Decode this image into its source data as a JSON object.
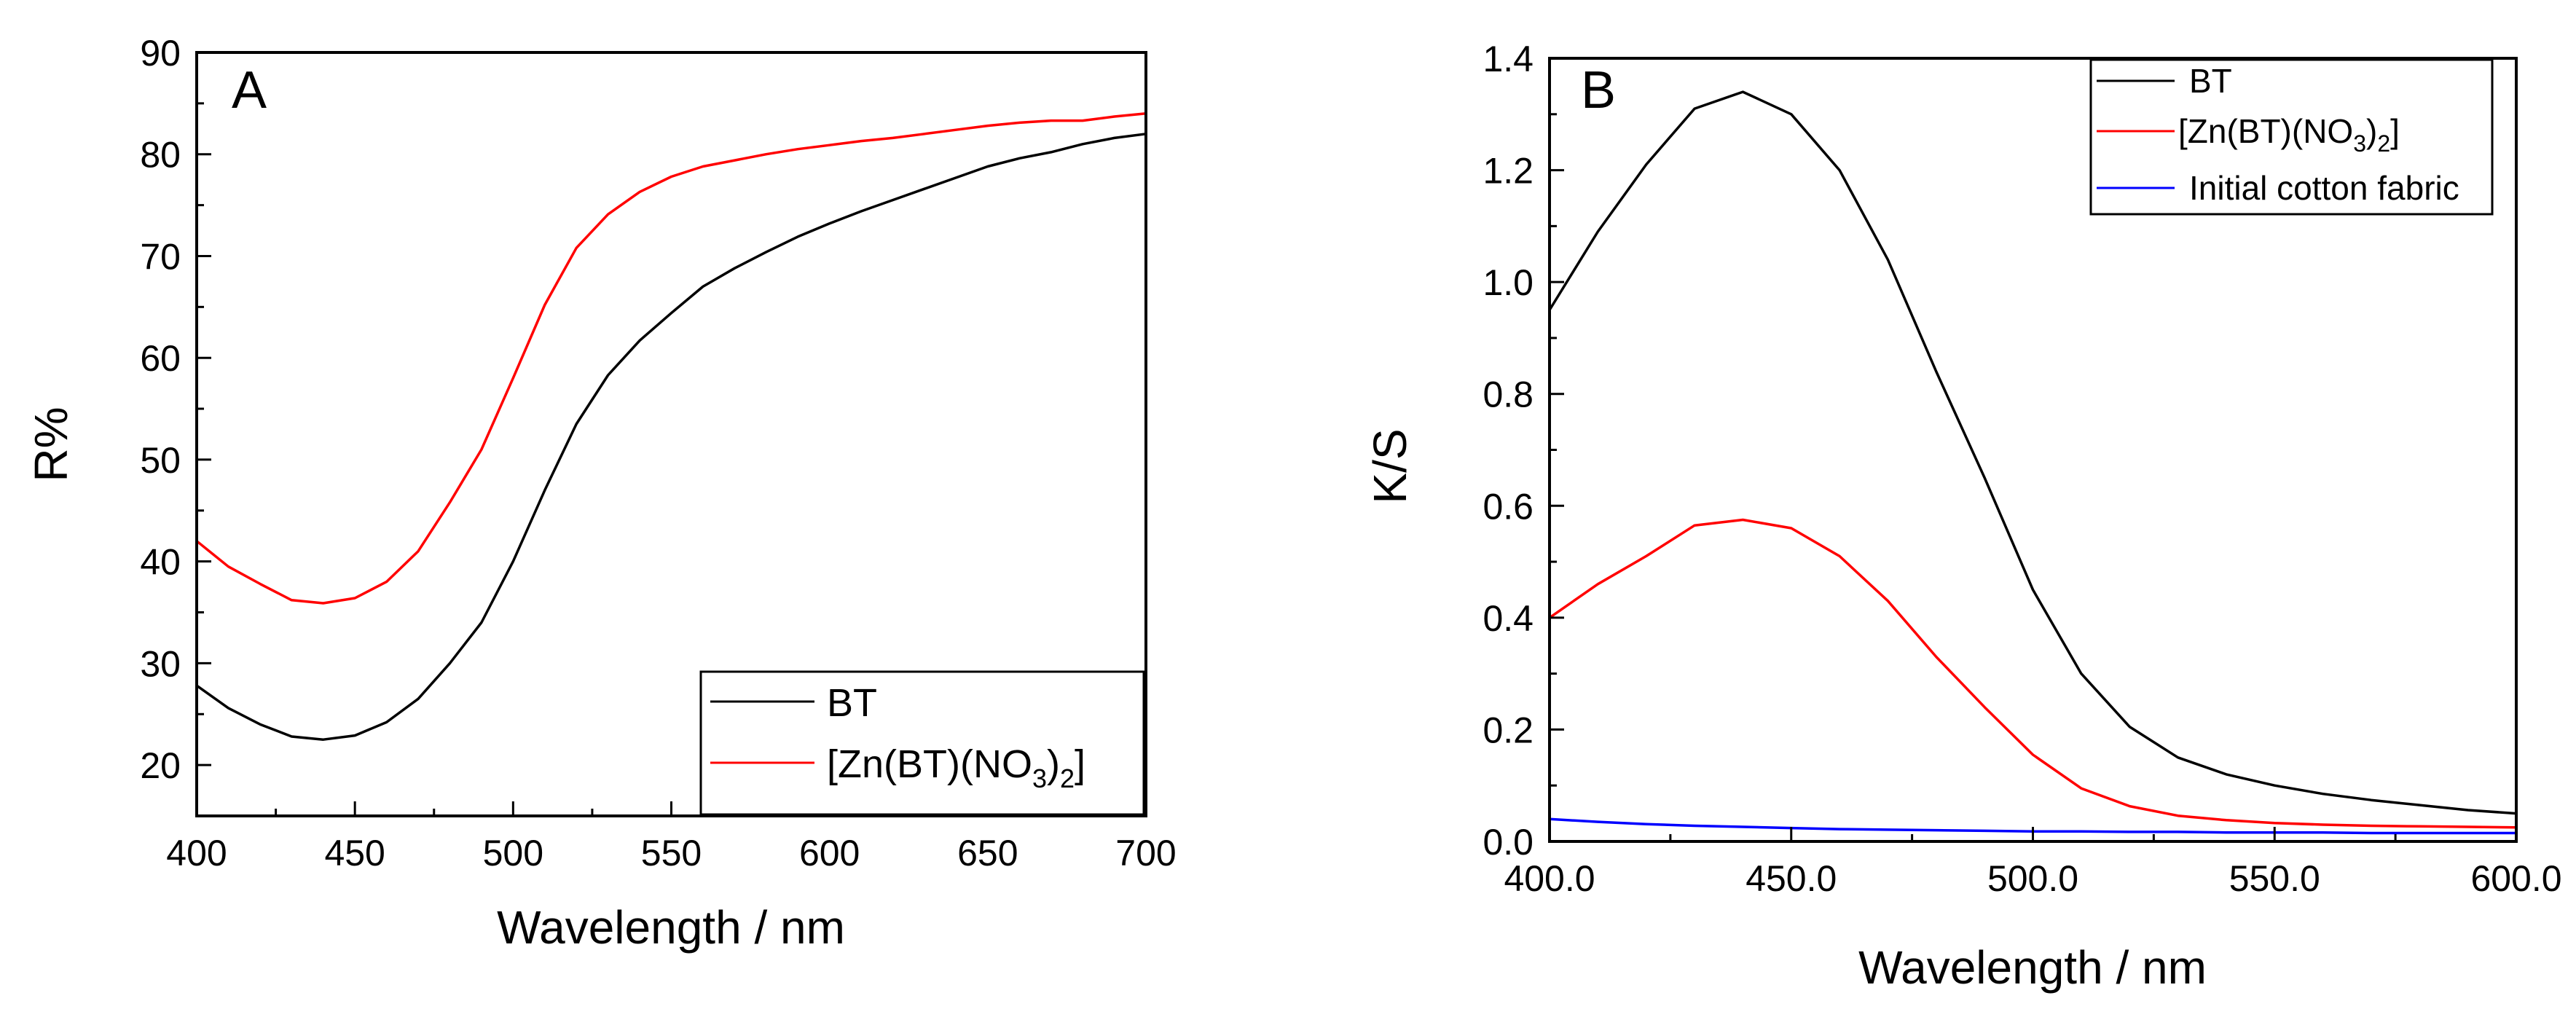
{
  "chart_data": [
    {
      "panel": "A",
      "type": "line",
      "xlabel": "Wavelength / nm",
      "ylabel": "R%",
      "xlim": [
        400,
        700
      ],
      "ylim": [
        15,
        90
      ],
      "xticks": [
        400,
        450,
        500,
        550,
        600,
        650,
        700
      ],
      "yticks": [
        20,
        30,
        40,
        50,
        60,
        70,
        80,
        90
      ],
      "legend_position": "bottom-right",
      "legend": [
        {
          "main": "BT",
          "sub1": "",
          "mid": "",
          "sub2": "",
          "end": ""
        },
        {
          "main": "[Zn(BT)(NO",
          "sub1": "3",
          "mid": ")",
          "sub2": "2",
          "end": "]"
        }
      ],
      "series": [
        {
          "name": "BT",
          "color": "#000000",
          "x": [
            400,
            410,
            420,
            430,
            440,
            450,
            460,
            470,
            480,
            490,
            500,
            510,
            520,
            530,
            540,
            550,
            560,
            570,
            580,
            590,
            600,
            610,
            620,
            630,
            640,
            650,
            660,
            670,
            680,
            690,
            700
          ],
          "y": [
            27.8,
            25.6,
            24.0,
            22.8,
            22.5,
            22.9,
            24.2,
            26.5,
            30.0,
            34.0,
            40.0,
            47.0,
            53.5,
            58.3,
            61.7,
            64.4,
            67.0,
            68.8,
            70.4,
            71.9,
            73.2,
            74.4,
            75.5,
            76.6,
            77.7,
            78.8,
            79.6,
            80.2,
            81.0,
            81.6,
            82.0
          ]
        },
        {
          "name": "[Zn(BT)(NO3)2]",
          "color": "#ff0000",
          "x": [
            400,
            410,
            420,
            430,
            440,
            450,
            460,
            470,
            480,
            490,
            500,
            510,
            520,
            530,
            540,
            550,
            560,
            570,
            580,
            590,
            600,
            610,
            620,
            630,
            640,
            650,
            660,
            670,
            680,
            690,
            700
          ],
          "y": [
            42.0,
            39.5,
            37.8,
            36.2,
            35.9,
            36.4,
            38.0,
            41.0,
            45.8,
            51.0,
            58.0,
            65.2,
            70.8,
            74.1,
            76.3,
            77.8,
            78.8,
            79.4,
            80.0,
            80.5,
            80.9,
            81.3,
            81.6,
            82.0,
            82.4,
            82.8,
            83.1,
            83.3,
            83.3,
            83.7,
            84.0
          ]
        }
      ]
    },
    {
      "panel": "B",
      "type": "line",
      "xlabel": "Wavelength / nm",
      "ylabel": "K/S",
      "xlim": [
        400,
        600
      ],
      "ylim": [
        0,
        1.4
      ],
      "xticks": [
        400,
        450,
        500,
        550,
        600
      ],
      "yticks": [
        0.0,
        0.2,
        0.4,
        0.6,
        0.8,
        1.0,
        1.2,
        1.4
      ],
      "legend_position": "top-right",
      "legend": [
        {
          "main": "BT",
          "sub1": "",
          "mid": "",
          "sub2": "",
          "end": ""
        },
        {
          "main": "[Zn(BT)(NO",
          "sub1": "3",
          "mid": ")",
          "sub2": "2",
          "end": "]"
        },
        {
          "main": "Initial cotton fabric",
          "sub1": "",
          "mid": "",
          "sub2": "",
          "end": ""
        }
      ],
      "series": [
        {
          "name": "BT",
          "color": "#000000",
          "x": [
            400,
            410,
            420,
            430,
            440,
            450,
            460,
            470,
            480,
            490,
            500,
            510,
            520,
            530,
            540,
            550,
            560,
            570,
            580,
            590,
            600
          ],
          "y": [
            0.95,
            1.09,
            1.21,
            1.31,
            1.34,
            1.3,
            1.2,
            1.04,
            0.84,
            0.65,
            0.45,
            0.3,
            0.205,
            0.15,
            0.12,
            0.1,
            0.085,
            0.074,
            0.065,
            0.056,
            0.05
          ]
        },
        {
          "name": "[Zn(BT)(NO3)2]",
          "color": "#ff0000",
          "x": [
            400,
            410,
            420,
            430,
            440,
            450,
            460,
            470,
            480,
            490,
            500,
            510,
            520,
            530,
            540,
            550,
            560,
            570,
            580,
            590,
            600
          ],
          "y": [
            0.4,
            0.46,
            0.51,
            0.565,
            0.575,
            0.56,
            0.51,
            0.43,
            0.33,
            0.24,
            0.155,
            0.095,
            0.063,
            0.046,
            0.038,
            0.033,
            0.03,
            0.028,
            0.027,
            0.026,
            0.025
          ]
        },
        {
          "name": "Initial cotton fabric",
          "color": "#0000ff",
          "x": [
            400,
            410,
            420,
            430,
            440,
            450,
            460,
            470,
            480,
            490,
            500,
            510,
            520,
            530,
            540,
            550,
            560,
            570,
            580,
            590,
            600
          ],
          "y": [
            0.04,
            0.035,
            0.031,
            0.028,
            0.026,
            0.024,
            0.022,
            0.021,
            0.02,
            0.019,
            0.018,
            0.018,
            0.017,
            0.017,
            0.016,
            0.016,
            0.016,
            0.015,
            0.015,
            0.015,
            0.015
          ]
        }
      ]
    }
  ]
}
